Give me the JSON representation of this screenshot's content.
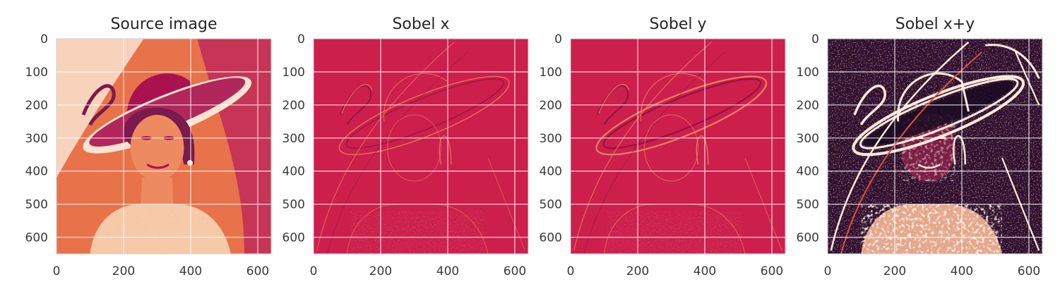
{
  "chart_data": [
    {
      "type": "heatmap",
      "title": "Source image",
      "xlim": [
        0,
        640
      ],
      "ylim": [
        650,
        0
      ],
      "xticks": [
        0,
        200,
        400,
        600
      ],
      "yticks": [
        0,
        100,
        200,
        300,
        400,
        500,
        600
      ],
      "grid": true,
      "colormap": "rocket",
      "colors": {
        "background": "#e8724a",
        "dark": "#a9124f",
        "light": "#fbe3d0",
        "accent": "#7a1a4d"
      }
    },
    {
      "type": "heatmap",
      "title": "Sobel x",
      "xlim": [
        0,
        640
      ],
      "ylim": [
        650,
        0
      ],
      "xticks": [
        0,
        200,
        400,
        600
      ],
      "yticks": [
        0,
        100,
        200,
        300,
        400,
        500,
        600
      ],
      "grid": true,
      "colormap": "rocket",
      "colors": {
        "background": "#cc1f4c",
        "dark": "#961445",
        "light": "#ef7a5d"
      }
    },
    {
      "type": "heatmap",
      "title": "Sobel y",
      "xlim": [
        0,
        640
      ],
      "ylim": [
        650,
        0
      ],
      "xticks": [
        0,
        200,
        400,
        600
      ],
      "yticks": [
        0,
        100,
        200,
        300,
        400,
        500,
        600
      ],
      "grid": true,
      "colormap": "rocket",
      "colors": {
        "background": "#cc1f4c",
        "dark": "#8c1244",
        "light": "#f28d65"
      }
    },
    {
      "type": "heatmap",
      "title": "Sobel x+y",
      "xlim": [
        0,
        640
      ],
      "ylim": [
        650,
        0
      ],
      "xticks": [
        0,
        200,
        400,
        600
      ],
      "yticks": [
        0,
        100,
        200,
        300,
        400,
        500,
        600
      ],
      "grid": true,
      "colormap": "rocket",
      "colors": {
        "background": "#2e0f2f",
        "dark": "#1a0b22",
        "light": "#fdebd8",
        "accent": "#e0503f"
      }
    }
  ]
}
